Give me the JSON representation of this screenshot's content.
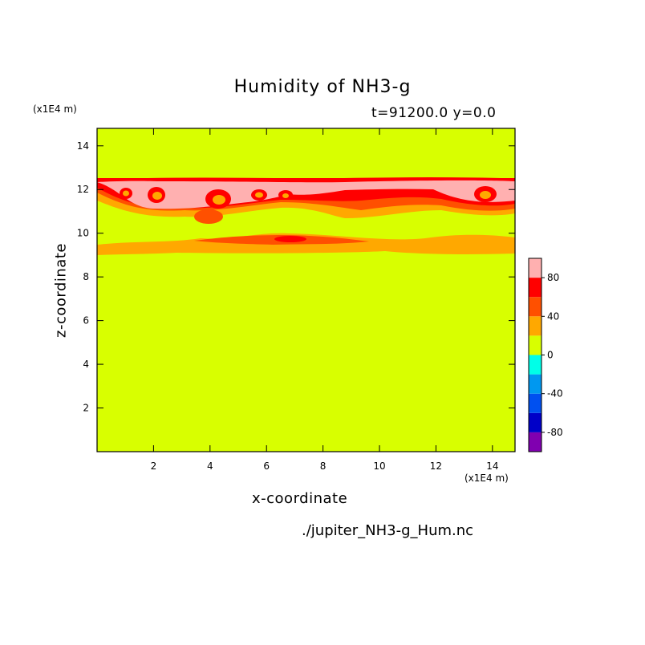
{
  "chart_data": {
    "type": "heatmap",
    "title": "Humidity of NH3-g",
    "subtitle": "t=91200.0 y=0.0",
    "xlabel": "x-coordinate",
    "ylabel": "z-coordinate",
    "x_unit": "(x1E4 m)",
    "y_unit": "(x1E4 m)",
    "filename": "./jupiter_NH3-g_Hum.nc",
    "xlim": [
      0,
      14.8
    ],
    "ylim": [
      0,
      14.8
    ],
    "x_ticks": [
      2,
      4,
      6,
      8,
      10,
      12,
      14
    ],
    "y_ticks": [
      2,
      4,
      6,
      8,
      10,
      12,
      14
    ],
    "colorbar": {
      "levels": [
        -100,
        -80,
        -60,
        -40,
        -20,
        0,
        20,
        40,
        60,
        80,
        100
      ],
      "colors": [
        "#8000b0",
        "#0000c8",
        "#0050f0",
        "#0098f0",
        "#00ffe8",
        "#d8ff00",
        "#ffa800",
        "#ff5000",
        "#ff0000",
        "#ffb0b0"
      ],
      "tick_labels": [
        "-80",
        "-40",
        "0",
        "40",
        "80"
      ],
      "tick_values": [
        -80,
        -40,
        0,
        40,
        80
      ]
    },
    "background_value_range": [
      0,
      20
    ],
    "notes": "Background 0–20; band near z≈9–10 at 20–40 with 40–60 core near x≈7; upper layer z≈11–12.6 reaching 60–100 with cells near x≈1, 2, 4.3, 6, 13.5"
  }
}
